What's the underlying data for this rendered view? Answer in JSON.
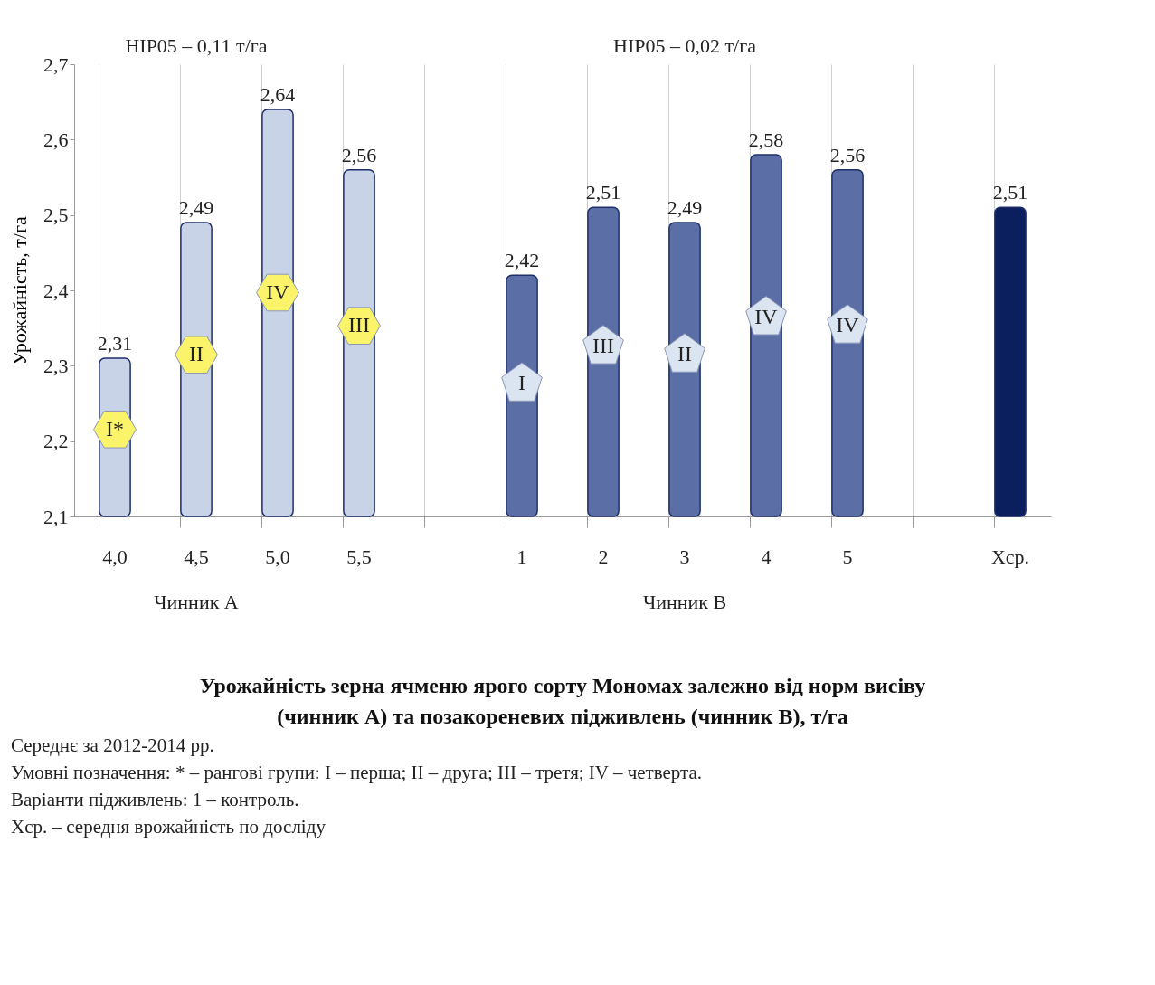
{
  "chart_data": {
    "type": "bar",
    "title": "Урожайність зерна ячменю ярого сорту Мономах залежно від норм висіву (чинник А) та позакореневих підживлень (чинник В), т/га",
    "ylabel": "Урожайність, т/га",
    "categories": [
      "4,0",
      "4,5",
      "5,0",
      "5,5",
      null,
      "1",
      "2",
      "3",
      "4",
      "5",
      null,
      "Xср."
    ],
    "values": [
      2.31,
      2.49,
      2.64,
      2.56,
      null,
      2.42,
      2.51,
      2.49,
      2.58,
      2.56,
      null,
      2.51
    ],
    "value_labels": [
      "2,31",
      "2,49",
      "2,64",
      "2,56",
      null,
      "2,42",
      "2,51",
      "2,49",
      "2,58",
      "2,56",
      null,
      "2,51"
    ],
    "colors": [
      "#c9d3e8",
      "#c9d3e8",
      "#c9d3e8",
      "#c9d3e8",
      "#ffffff",
      "#5b6fa6",
      "#5b6fa6",
      "#5b6fa6",
      "#5b6fa6",
      "#5b6fa6",
      "#ffffff",
      "#0b1f5e"
    ],
    "ylim": [
      2.1,
      2.7
    ],
    "yticks": [
      {
        "value": 2.1,
        "label": "2,1"
      },
      {
        "value": 2.2,
        "label": "2,2"
      },
      {
        "value": 2.3,
        "label": "2,3"
      },
      {
        "value": 2.4,
        "label": "2,4"
      },
      {
        "value": 2.5,
        "label": "2,5"
      },
      {
        "value": 2.6,
        "label": "2,6"
      },
      {
        "value": 2.7,
        "label": "2,7"
      }
    ],
    "grid": "x",
    "annotations": [
      "НІР05 – 0,11 т/га",
      "НІР05 – 0,02 т/га",
      "Чинник А",
      "Чинник В",
      "I*",
      "II",
      "IV",
      "III",
      "I",
      "III",
      "II",
      "IV",
      "IV",
      "Середнє за 2012-2014 рр.",
      "Умовні позначення: * – рангові групи: I – перша; II – друга; III – третя; IV – четверта.",
      "Варіанти підживлень: 1 – контроль.",
      "Xср. – середня врожайність по досліду"
    ]
  }
}
